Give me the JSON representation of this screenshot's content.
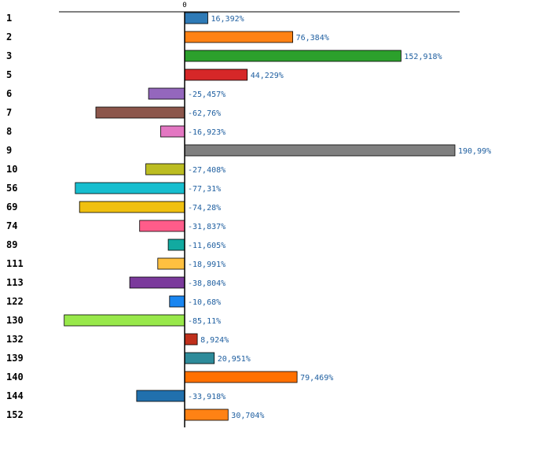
{
  "chart_data": {
    "type": "bar",
    "orientation": "horizontal",
    "title": "",
    "xlabel": "",
    "ylabel": "",
    "zero_tick_label": "0",
    "xlim": [
      -100,
      200
    ],
    "grid": false,
    "categories": [
      "1",
      "2",
      "3",
      "5",
      "6",
      "7",
      "8",
      "9",
      "10",
      "56",
      "69",
      "74",
      "89",
      "111",
      "113",
      "122",
      "130",
      "132",
      "139",
      "140",
      "144",
      "152"
    ],
    "values": [
      16.392,
      76.384,
      152.918,
      44.229,
      -25.457,
      -62.76,
      -16.923,
      190.99,
      -27.408,
      -77.31,
      -74.28,
      -31.837,
      -11.605,
      -18.991,
      -38.804,
      -10.68,
      -85.11,
      8.924,
      20.951,
      79.469,
      -33.918,
      30.704
    ],
    "value_labels": [
      "16,392%",
      "76,384%",
      "152,918%",
      "44,229%",
      "-25,457%",
      "-62,76%",
      "-16,923%",
      "190,99%",
      "-27,408%",
      "-77,31%",
      "-74,28%",
      "-31,837%",
      "-11,605%",
      "-18,991%",
      "-38,804%",
      "-10,68%",
      "-85,11%",
      "8,924%",
      "20,951%",
      "79,469%",
      "-33,918%",
      "30,704%"
    ],
    "colors": [
      "#2e7ab6",
      "#ff8214",
      "#2ca02c",
      "#d62728",
      "#9467bd",
      "#8c564b",
      "#e377c2",
      "#7f7f7f",
      "#bcbd22",
      "#17becf",
      "#f0c010",
      "#ff5c8a",
      "#12aaa0",
      "#ffc040",
      "#7b3a9c",
      "#1a86f0",
      "#98e84a",
      "#c0301c",
      "#2e8b9a",
      "#ff7000",
      "#2170ad",
      "#ff8214"
    ]
  }
}
